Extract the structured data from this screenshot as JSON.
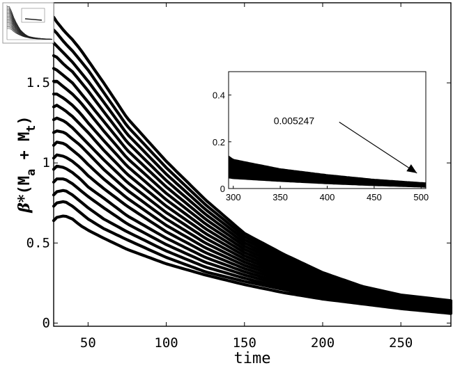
{
  "chart_data": [
    {
      "type": "line",
      "xlabel": "time",
      "ylabel_prefix": "β*",
      "ylabel_body": "(M",
      "ylabel_sub1": "a",
      "ylabel_plus": " + M",
      "ylabel_sub2": "t",
      "ylabel_close": ")",
      "xlim": [
        28,
        282
      ],
      "ylim": [
        -0.02,
        2.0
      ],
      "xticks": [
        50,
        100,
        150,
        200,
        250
      ],
      "xtick_labels": [
        "50",
        "100",
        "150",
        "200",
        "250"
      ],
      "yticks": [
        0,
        0.5,
        1,
        1.5
      ],
      "ytick_labels": [
        "0",
        "0.5",
        "1",
        "1.5"
      ],
      "series_count": 17,
      "x": [
        28,
        30,
        35,
        40,
        45,
        50,
        60,
        75,
        100,
        125,
        150,
        175,
        200,
        225,
        250,
        282
      ],
      "series": [
        {
          "values": [
            0.64,
            0.66,
            0.67,
            0.65,
            0.61,
            0.58,
            0.53,
            0.46,
            0.37,
            0.3,
            0.24,
            0.19,
            0.15,
            0.12,
            0.09,
            0.06
          ]
        },
        {
          "values": [
            0.73,
            0.75,
            0.76,
            0.73,
            0.69,
            0.65,
            0.59,
            0.52,
            0.41,
            0.32,
            0.26,
            0.21,
            0.16,
            0.13,
            0.1,
            0.065
          ]
        },
        {
          "values": [
            0.8,
            0.82,
            0.83,
            0.8,
            0.76,
            0.72,
            0.65,
            0.57,
            0.45,
            0.35,
            0.28,
            0.22,
            0.17,
            0.135,
            0.105,
            0.07
          ]
        },
        {
          "values": [
            0.88,
            0.9,
            0.9,
            0.87,
            0.83,
            0.79,
            0.72,
            0.62,
            0.49,
            0.38,
            0.3,
            0.235,
            0.18,
            0.14,
            0.11,
            0.075
          ]
        },
        {
          "values": [
            0.96,
            0.98,
            0.97,
            0.94,
            0.9,
            0.85,
            0.78,
            0.67,
            0.53,
            0.41,
            0.32,
            0.25,
            0.19,
            0.15,
            0.115,
            0.08
          ]
        },
        {
          "values": [
            1.03,
            1.05,
            1.04,
            1.01,
            0.97,
            0.92,
            0.84,
            0.73,
            0.57,
            0.44,
            0.34,
            0.265,
            0.205,
            0.16,
            0.12,
            0.085
          ]
        },
        {
          "values": [
            1.11,
            1.13,
            1.12,
            1.08,
            1.04,
            0.99,
            0.9,
            0.78,
            0.61,
            0.47,
            0.36,
            0.28,
            0.215,
            0.165,
            0.125,
            0.09
          ]
        },
        {
          "values": [
            1.19,
            1.2,
            1.19,
            1.15,
            1.11,
            1.06,
            0.96,
            0.83,
            0.65,
            0.5,
            0.38,
            0.295,
            0.225,
            0.17,
            0.13,
            0.095
          ]
        },
        {
          "values": [
            1.27,
            1.28,
            1.26,
            1.22,
            1.17,
            1.12,
            1.02,
            0.88,
            0.69,
            0.53,
            0.4,
            0.31,
            0.235,
            0.18,
            0.135,
            0.1
          ]
        },
        {
          "values": [
            1.35,
            1.36,
            1.33,
            1.29,
            1.24,
            1.19,
            1.08,
            0.93,
            0.73,
            0.56,
            0.42,
            0.325,
            0.245,
            0.185,
            0.14,
            0.105
          ]
        },
        {
          "values": [
            1.43,
            1.43,
            1.4,
            1.36,
            1.31,
            1.25,
            1.14,
            0.98,
            0.77,
            0.59,
            0.44,
            0.34,
            0.255,
            0.19,
            0.145,
            0.11
          ]
        },
        {
          "values": [
            1.51,
            1.51,
            1.47,
            1.43,
            1.38,
            1.32,
            1.2,
            1.03,
            0.81,
            0.62,
            0.46,
            0.355,
            0.265,
            0.2,
            0.15,
            0.115
          ]
        },
        {
          "values": [
            1.59,
            1.58,
            1.54,
            1.5,
            1.44,
            1.38,
            1.26,
            1.08,
            0.85,
            0.65,
            0.48,
            0.37,
            0.275,
            0.205,
            0.155,
            0.12
          ]
        },
        {
          "values": [
            1.67,
            1.66,
            1.61,
            1.57,
            1.51,
            1.45,
            1.32,
            1.13,
            0.89,
            0.68,
            0.5,
            0.385,
            0.285,
            0.21,
            0.16,
            0.125
          ]
        },
        {
          "values": [
            1.75,
            1.73,
            1.68,
            1.63,
            1.57,
            1.51,
            1.38,
            1.18,
            0.93,
            0.71,
            0.52,
            0.4,
            0.295,
            0.22,
            0.165,
            0.13
          ]
        },
        {
          "values": [
            1.83,
            1.81,
            1.75,
            1.7,
            1.64,
            1.58,
            1.44,
            1.23,
            0.97,
            0.74,
            0.54,
            0.415,
            0.305,
            0.225,
            0.17,
            0.135
          ]
        },
        {
          "values": [
            1.91,
            1.88,
            1.82,
            1.77,
            1.71,
            1.64,
            1.5,
            1.28,
            1.01,
            0.77,
            0.56,
            0.43,
            0.315,
            0.23,
            0.175,
            0.14
          ]
        }
      ],
      "grid": false
    },
    {
      "type": "area",
      "xlim": [
        295,
        505
      ],
      "ylim": [
        0,
        0.5
      ],
      "xticks": [
        300,
        350,
        400,
        450,
        500
      ],
      "xtick_labels": [
        "300",
        "350",
        "400",
        "450",
        "500"
      ],
      "yticks": [
        0,
        0.2,
        0.4
      ],
      "ytick_labels": [
        "0",
        "0.2",
        "0.4"
      ],
      "x": [
        295,
        300,
        350,
        400,
        450,
        500,
        505
      ],
      "upper": [
        0.14,
        0.125,
        0.085,
        0.06,
        0.04,
        0.026,
        0.025
      ],
      "lower": [
        0.045,
        0.042,
        0.03,
        0.02,
        0.012,
        0.006,
        0.0052
      ],
      "annotation": {
        "text": "0.005247",
        "x_text": 300,
        "y_text": 0.29,
        "x_target": 500,
        "y_target": 0.06
      }
    },
    {
      "type": "line",
      "thumbnail": true,
      "xlim": [
        0,
        500
      ],
      "ylim": [
        0,
        2.0
      ]
    }
  ]
}
